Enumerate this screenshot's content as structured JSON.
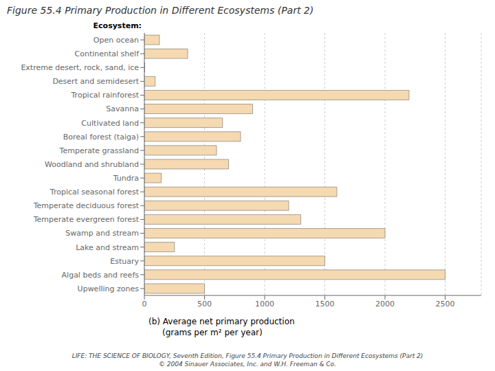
{
  "chart_data": {
    "type": "bar",
    "orientation": "horizontal",
    "title": "Figure 55.4  Primary Production in Different Ecosystems (Part 2)",
    "xlabel": [
      "(b)  Average net primary production",
      "(grams per m² per year)"
    ],
    "ylabel": "Ecosystem:",
    "categories": [
      "Open ocean",
      "Continental shelf",
      "Extreme desert, rock, sand, ice",
      "Desert and semidesert",
      "Tropical rainforest",
      "Savanna",
      "Cultivated land",
      "Boreal forest (taiga)",
      "Temperate grassland",
      "Woodland and shrubland",
      "Tundra",
      "Tropical seasonal forest",
      "Temperate deciduous forest",
      "Temperate evergreen forest",
      "Swamp and stream",
      "Lake and stream",
      "Estuary",
      "Algal beds and reefs",
      "Upwelling zones"
    ],
    "values": [
      125,
      360,
      3,
      90,
      2200,
      900,
      650,
      800,
      600,
      700,
      140,
      1600,
      1200,
      1300,
      2000,
      250,
      1500,
      2500,
      500
    ],
    "color": "#f5d9b0",
    "xlim": [
      0,
      2800
    ],
    "xticks": [
      0,
      500,
      1000,
      1500,
      2000,
      2500
    ],
    "grid": true,
    "annotations": [
      "LIFE: THE SCIENCE OF BIOLOGY, Seventh Edition, Figure 55.4 Primary Production in Different Ecosystems (Part 2)",
      "© 2004 Sinauer Associates, Inc. and W.H. Freeman & Co."
    ]
  }
}
